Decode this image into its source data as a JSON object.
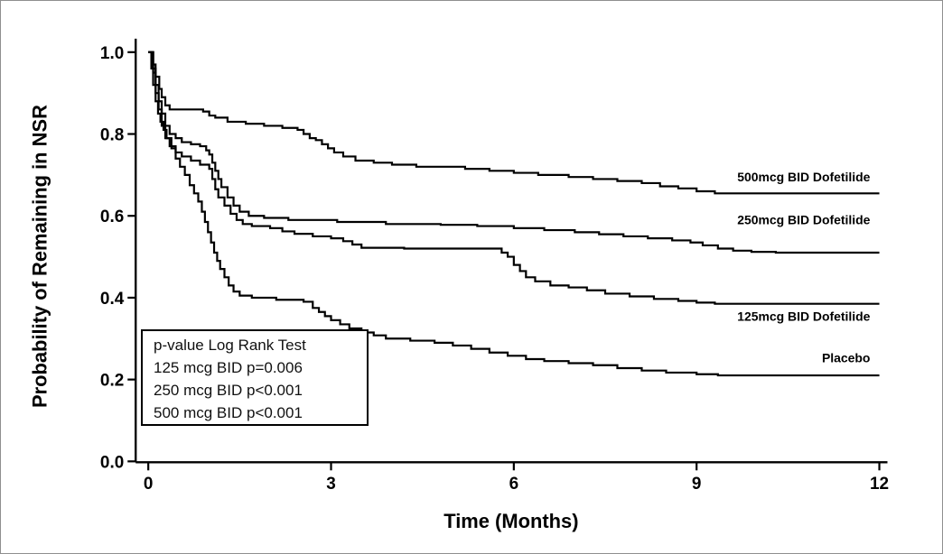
{
  "figure": {
    "background": "#ffffff",
    "frame_border_color": "#8f8f8f"
  },
  "chart_data": {
    "type": "line",
    "subtype": "kaplan-meier-step",
    "title": "",
    "xlabel": "Time (Months)",
    "ylabel": "Probability of Remaining in NSR",
    "xlim": [
      0,
      12
    ],
    "ylim": [
      0.0,
      1.0
    ],
    "xticks": [
      "0",
      "3",
      "6",
      "9",
      "12"
    ],
    "yticks": [
      "0.0",
      "0.2",
      "0.4",
      "0.6",
      "0.8",
      "1.0"
    ],
    "grid": false,
    "legend_position": "inline-right-labels",
    "line_color": "#000000",
    "axis_color": "#000000",
    "series": [
      {
        "id": "dofetilide-500",
        "name": "500mcg BID Dofetilide",
        "label_pos": {
          "x": 11.85,
          "y": 0.695
        },
        "points": [
          [
            0,
            1.0
          ],
          [
            0.08,
            0.97
          ],
          [
            0.12,
            0.94
          ],
          [
            0.18,
            0.91
          ],
          [
            0.22,
            0.89
          ],
          [
            0.28,
            0.87
          ],
          [
            0.35,
            0.86
          ],
          [
            0.9,
            0.855
          ],
          [
            1.0,
            0.845
          ],
          [
            1.1,
            0.84
          ],
          [
            1.3,
            0.83
          ],
          [
            1.6,
            0.825
          ],
          [
            1.9,
            0.82
          ],
          [
            2.2,
            0.815
          ],
          [
            2.45,
            0.81
          ],
          [
            2.55,
            0.8
          ],
          [
            2.65,
            0.79
          ],
          [
            2.75,
            0.785
          ],
          [
            2.85,
            0.775
          ],
          [
            2.95,
            0.765
          ],
          [
            3.05,
            0.755
          ],
          [
            3.2,
            0.745
          ],
          [
            3.4,
            0.735
          ],
          [
            3.7,
            0.73
          ],
          [
            4.0,
            0.725
          ],
          [
            4.4,
            0.72
          ],
          [
            5.2,
            0.715
          ],
          [
            5.6,
            0.71
          ],
          [
            6.0,
            0.705
          ],
          [
            6.4,
            0.7
          ],
          [
            6.9,
            0.695
          ],
          [
            7.3,
            0.69
          ],
          [
            7.7,
            0.685
          ],
          [
            8.1,
            0.68
          ],
          [
            8.4,
            0.672
          ],
          [
            8.7,
            0.667
          ],
          [
            9.0,
            0.66
          ],
          [
            9.3,
            0.655
          ],
          [
            12,
            0.655
          ]
        ]
      },
      {
        "id": "dofetilide-250",
        "name": "250mcg BID Dofetilide",
        "label_pos": {
          "x": 11.85,
          "y": 0.59
        },
        "points": [
          [
            0,
            1.0
          ],
          [
            0.08,
            0.96
          ],
          [
            0.12,
            0.92
          ],
          [
            0.17,
            0.88
          ],
          [
            0.22,
            0.85
          ],
          [
            0.28,
            0.82
          ],
          [
            0.35,
            0.8
          ],
          [
            0.45,
            0.79
          ],
          [
            0.55,
            0.78
          ],
          [
            0.7,
            0.775
          ],
          [
            0.85,
            0.77
          ],
          [
            0.95,
            0.76
          ],
          [
            1.0,
            0.75
          ],
          [
            1.05,
            0.73
          ],
          [
            1.1,
            0.71
          ],
          [
            1.15,
            0.69
          ],
          [
            1.2,
            0.67
          ],
          [
            1.3,
            0.645
          ],
          [
            1.4,
            0.625
          ],
          [
            1.5,
            0.61
          ],
          [
            1.65,
            0.6
          ],
          [
            1.9,
            0.595
          ],
          [
            2.3,
            0.59
          ],
          [
            3.1,
            0.585
          ],
          [
            3.9,
            0.58
          ],
          [
            4.8,
            0.578
          ],
          [
            5.4,
            0.575
          ],
          [
            6.0,
            0.57
          ],
          [
            6.5,
            0.565
          ],
          [
            7.0,
            0.56
          ],
          [
            7.4,
            0.555
          ],
          [
            7.8,
            0.55
          ],
          [
            8.2,
            0.545
          ],
          [
            8.6,
            0.54
          ],
          [
            8.9,
            0.535
          ],
          [
            9.1,
            0.528
          ],
          [
            9.35,
            0.52
          ],
          [
            9.6,
            0.515
          ],
          [
            9.9,
            0.512
          ],
          [
            10.3,
            0.51
          ],
          [
            12,
            0.51
          ]
        ]
      },
      {
        "id": "dofetilide-125",
        "name": "125mcg BID Dofetilide",
        "label_pos": {
          "x": 11.85,
          "y": 0.355
        },
        "points": [
          [
            0,
            1.0
          ],
          [
            0.08,
            0.95
          ],
          [
            0.12,
            0.9
          ],
          [
            0.17,
            0.86
          ],
          [
            0.22,
            0.82
          ],
          [
            0.28,
            0.79
          ],
          [
            0.35,
            0.77
          ],
          [
            0.45,
            0.755
          ],
          [
            0.55,
            0.745
          ],
          [
            0.7,
            0.735
          ],
          [
            0.85,
            0.725
          ],
          [
            1.0,
            0.715
          ],
          [
            1.05,
            0.69
          ],
          [
            1.1,
            0.665
          ],
          [
            1.15,
            0.645
          ],
          [
            1.25,
            0.625
          ],
          [
            1.35,
            0.605
          ],
          [
            1.45,
            0.59
          ],
          [
            1.55,
            0.58
          ],
          [
            1.7,
            0.575
          ],
          [
            2.0,
            0.57
          ],
          [
            2.2,
            0.562
          ],
          [
            2.4,
            0.556
          ],
          [
            2.7,
            0.55
          ],
          [
            3.0,
            0.545
          ],
          [
            3.2,
            0.538
          ],
          [
            3.35,
            0.53
          ],
          [
            3.5,
            0.522
          ],
          [
            4.2,
            0.52
          ],
          [
            5.6,
            0.52
          ],
          [
            5.8,
            0.51
          ],
          [
            5.9,
            0.5
          ],
          [
            6.0,
            0.48
          ],
          [
            6.1,
            0.465
          ],
          [
            6.2,
            0.45
          ],
          [
            6.35,
            0.44
          ],
          [
            6.6,
            0.43
          ],
          [
            6.9,
            0.425
          ],
          [
            7.2,
            0.418
          ],
          [
            7.5,
            0.41
          ],
          [
            7.9,
            0.403
          ],
          [
            8.3,
            0.397
          ],
          [
            8.7,
            0.392
          ],
          [
            9.0,
            0.388
          ],
          [
            9.3,
            0.385
          ],
          [
            12,
            0.385
          ]
        ]
      },
      {
        "id": "placebo",
        "name": "Placebo",
        "label_pos": {
          "x": 11.85,
          "y": 0.253
        },
        "points": [
          [
            0,
            1.0
          ],
          [
            0.05,
            0.96
          ],
          [
            0.08,
            0.92
          ],
          [
            0.12,
            0.88
          ],
          [
            0.16,
            0.85
          ],
          [
            0.2,
            0.83
          ],
          [
            0.25,
            0.81
          ],
          [
            0.3,
            0.79
          ],
          [
            0.38,
            0.765
          ],
          [
            0.45,
            0.74
          ],
          [
            0.52,
            0.72
          ],
          [
            0.6,
            0.7
          ],
          [
            0.68,
            0.675
          ],
          [
            0.75,
            0.655
          ],
          [
            0.82,
            0.635
          ],
          [
            0.88,
            0.61
          ],
          [
            0.93,
            0.585
          ],
          [
            0.98,
            0.56
          ],
          [
            1.03,
            0.535
          ],
          [
            1.08,
            0.51
          ],
          [
            1.13,
            0.49
          ],
          [
            1.18,
            0.47
          ],
          [
            1.25,
            0.45
          ],
          [
            1.32,
            0.43
          ],
          [
            1.4,
            0.415
          ],
          [
            1.5,
            0.405
          ],
          [
            1.7,
            0.4
          ],
          [
            2.1,
            0.395
          ],
          [
            2.55,
            0.39
          ],
          [
            2.7,
            0.375
          ],
          [
            2.8,
            0.365
          ],
          [
            2.9,
            0.355
          ],
          [
            3.0,
            0.345
          ],
          [
            3.15,
            0.335
          ],
          [
            3.3,
            0.325
          ],
          [
            3.5,
            0.315
          ],
          [
            3.7,
            0.308
          ],
          [
            3.9,
            0.3
          ],
          [
            4.3,
            0.295
          ],
          [
            4.7,
            0.29
          ],
          [
            5.0,
            0.283
          ],
          [
            5.3,
            0.275
          ],
          [
            5.6,
            0.266
          ],
          [
            5.9,
            0.258
          ],
          [
            6.2,
            0.25
          ],
          [
            6.5,
            0.245
          ],
          [
            6.9,
            0.24
          ],
          [
            7.3,
            0.235
          ],
          [
            7.7,
            0.228
          ],
          [
            8.1,
            0.222
          ],
          [
            8.5,
            0.217
          ],
          [
            9.0,
            0.213
          ],
          [
            9.35,
            0.21
          ],
          [
            12,
            0.21
          ]
        ]
      }
    ]
  },
  "annotation_box": {
    "title": "p-value Log Rank Test",
    "lines": [
      "125 mcg BID p=0.006",
      "250 mcg BID p<0.001",
      "500 mcg BID p<0.001"
    ]
  }
}
